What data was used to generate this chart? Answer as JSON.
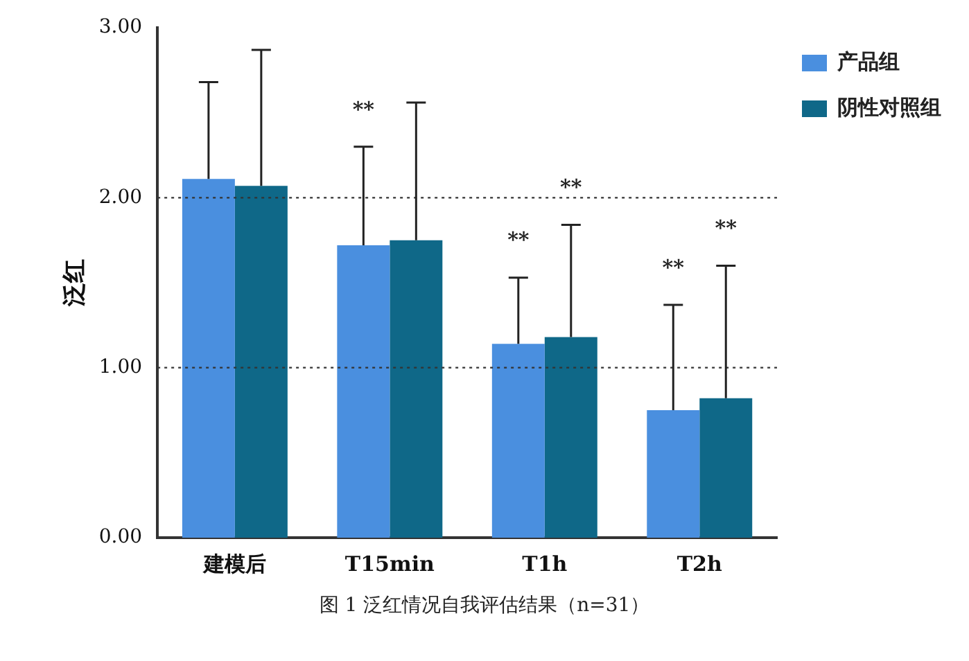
{
  "chart_data": {
    "type": "bar",
    "ylabel": "泛红",
    "categories": [
      "建模后",
      "T15min",
      "T1h",
      "T2h"
    ],
    "series": [
      {
        "name": "产品组",
        "color": "#4a8fdf",
        "values": [
          2.11,
          1.72,
          1.14,
          0.75
        ],
        "errors": [
          [
            2.11,
            2.68
          ],
          [
            1.72,
            2.3
          ],
          [
            1.14,
            1.53
          ],
          [
            0.75,
            1.37
          ]
        ]
      },
      {
        "name": "阴性对照组",
        "color": "#0f6888",
        "values": [
          2.07,
          1.75,
          1.18,
          0.82
        ],
        "errors": [
          [
            2.07,
            2.87
          ],
          [
            1.75,
            2.56
          ],
          [
            1.18,
            1.84
          ],
          [
            0.82,
            1.6
          ]
        ]
      }
    ],
    "ylim": [
      0,
      3
    ],
    "yticks": [
      {
        "value": 0,
        "label": "0.00"
      },
      {
        "value": 1,
        "label": "1.00"
      },
      {
        "value": 2,
        "label": "2.00"
      },
      {
        "value": 3,
        "label": "3.00"
      }
    ],
    "grid": false,
    "legend": "top right",
    "ref_lines": [
      {
        "axis": "y",
        "value": 1,
        "line_style": "dotted"
      },
      {
        "axis": "y",
        "value": 2,
        "line_style": "dotted"
      }
    ],
    "annotations": [
      "**",
      "**",
      "**",
      "**",
      "**",
      "图 1 泛红情况自我评估结果（n=31）"
    ]
  }
}
